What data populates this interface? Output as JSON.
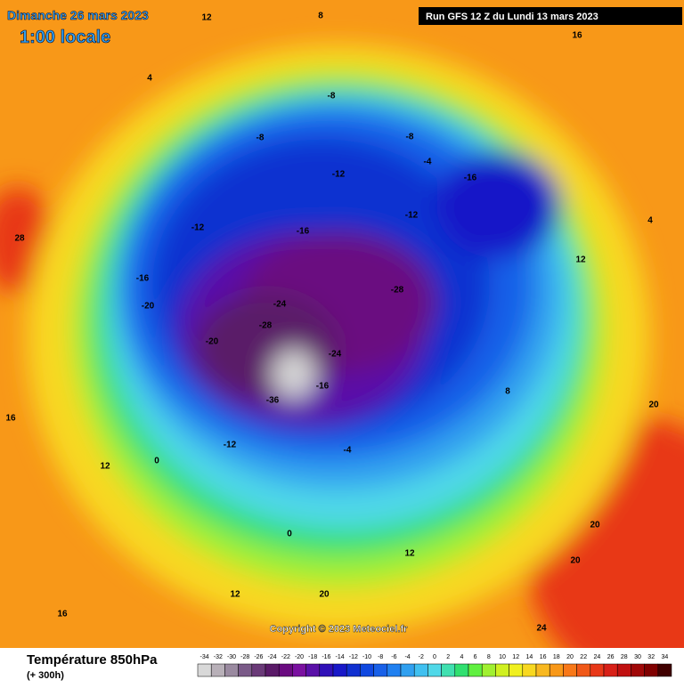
{
  "header": {
    "date": "Dimanche 26 mars 2023",
    "time": "1:00 locale",
    "run": "Run GFS 12 Z du Lundi 13 mars 2023"
  },
  "footer": {
    "copyright": "Copyright © 2023 Meteociel.fr"
  },
  "legend": {
    "title": "Température 850hPa",
    "subtitle": "(+ 300h)",
    "ticks": [
      -34,
      -32,
      -30,
      -28,
      -26,
      -24,
      -22,
      -20,
      -18,
      -16,
      -14,
      -12,
      -10,
      -8,
      -6,
      -4,
      -2,
      0,
      2,
      4,
      6,
      8,
      10,
      12,
      14,
      16,
      18,
      20,
      22,
      24,
      26,
      28,
      30,
      32,
      34
    ],
    "colors": [
      "#d8d8d8",
      "#b8b0b8",
      "#9a8aa0",
      "#7a5a88",
      "#6a3a78",
      "#5a1a68",
      "#6a0a80",
      "#7a10a0",
      "#5a10a8",
      "#3010b8",
      "#1818c8",
      "#1030d0",
      "#1048e0",
      "#1860e8",
      "#2080f0",
      "#30a0f0",
      "#40c0f0",
      "#50d8e8",
      "#40e0b0",
      "#30e070",
      "#60f040",
      "#a0f030",
      "#d0f020",
      "#f0f020",
      "#f8d820",
      "#f8b820",
      "#f89818",
      "#f87818",
      "#f05818",
      "#e83818",
      "#d82018",
      "#c01010",
      "#a00808",
      "#800000",
      "#400000"
    ]
  },
  "map_labels": [
    12,
    8,
    16,
    4,
    -8,
    -8,
    -12,
    -16,
    -16,
    -12,
    -4,
    -20,
    -16,
    -24,
    -28,
    -28,
    -20,
    -24,
    -36,
    -16,
    -12,
    -4,
    0,
    0,
    12,
    16,
    20,
    20,
    24,
    20,
    28,
    12,
    16,
    12,
    8,
    -8,
    -12,
    4,
    12,
    20
  ]
}
